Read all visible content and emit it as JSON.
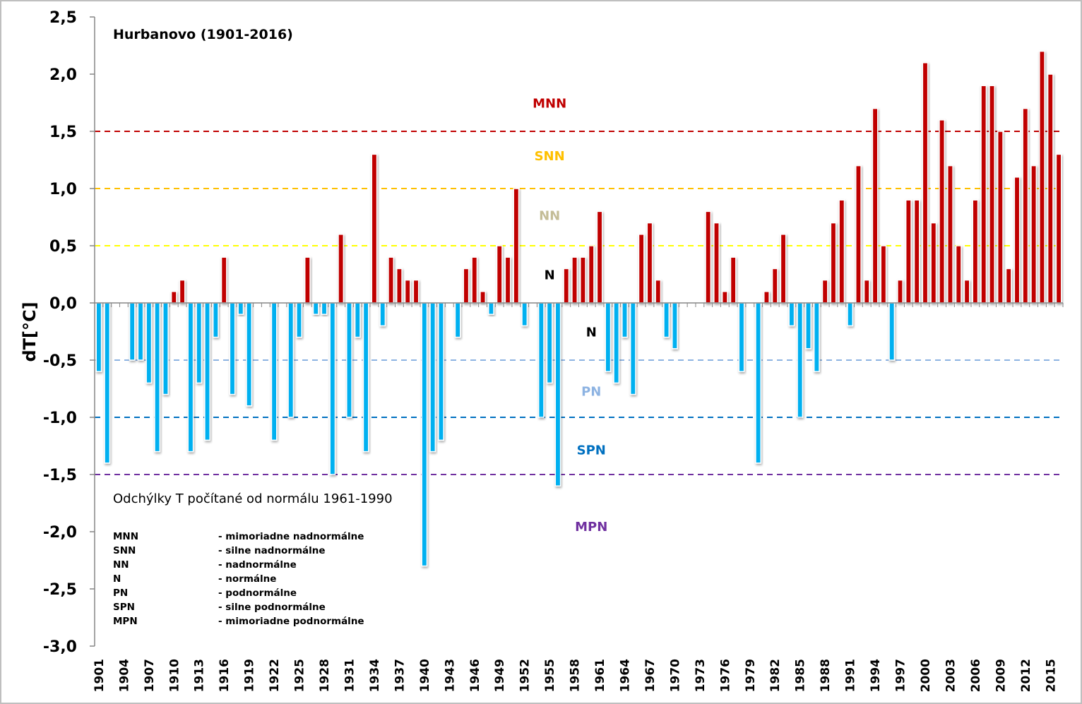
{
  "chart_data": {
    "type": "bar",
    "title": "Hurbanovo (1901-2016)",
    "xlabel": "",
    "ylabel": "dT[°C]",
    "ylim": [
      -3.0,
      2.5
    ],
    "y_ticks": [
      "2,5",
      "2,0",
      "1,5",
      "1,0",
      "0,5",
      "0,0",
      "-0,5",
      "-1,0",
      "-1,5",
      "-2,0",
      "-2,5",
      "-3,0"
    ],
    "y_tick_values": [
      2.5,
      2.0,
      1.5,
      1.0,
      0.5,
      0.0,
      -0.5,
      -1.0,
      -1.5,
      -2.0,
      -2.5,
      -3.0
    ],
    "x_tick_every": 3,
    "grid": false,
    "positive_color": "#c00000",
    "negative_color": "#00b0f0",
    "categories": [
      1901,
      1902,
      1903,
      1904,
      1905,
      1906,
      1907,
      1908,
      1909,
      1910,
      1911,
      1912,
      1913,
      1914,
      1915,
      1916,
      1917,
      1918,
      1919,
      1920,
      1921,
      1922,
      1923,
      1924,
      1925,
      1926,
      1927,
      1928,
      1929,
      1930,
      1931,
      1932,
      1933,
      1934,
      1935,
      1936,
      1937,
      1938,
      1939,
      1940,
      1941,
      1942,
      1943,
      1944,
      1945,
      1946,
      1947,
      1948,
      1949,
      1950,
      1951,
      1952,
      1953,
      1954,
      1955,
      1956,
      1957,
      1958,
      1959,
      1960,
      1961,
      1962,
      1963,
      1964,
      1965,
      1966,
      1967,
      1968,
      1969,
      1970,
      1971,
      1972,
      1973,
      1974,
      1975,
      1976,
      1977,
      1978,
      1979,
      1980,
      1981,
      1982,
      1983,
      1984,
      1985,
      1986,
      1987,
      1988,
      1989,
      1990,
      1991,
      1992,
      1993,
      1994,
      1995,
      1996,
      1997,
      1998,
      1999,
      2000,
      2001,
      2002,
      2003,
      2004,
      2005,
      2006,
      2007,
      2008,
      2009,
      2010,
      2011,
      2012,
      2013,
      2014,
      2015,
      2016
    ],
    "values": [
      -0.6,
      -1.4,
      0,
      0,
      -0.5,
      -0.5,
      -0.7,
      -1.3,
      -0.8,
      0.1,
      0.2,
      -1.3,
      -0.7,
      -1.2,
      -0.3,
      0.4,
      -0.8,
      -0.1,
      -0.9,
      0,
      0,
      -1.2,
      0,
      -1.0,
      -0.3,
      0.4,
      -0.1,
      -0.1,
      -1.5,
      0.6,
      -1.0,
      -0.3,
      -1.3,
      1.3,
      -0.2,
      0.4,
      0.3,
      0.2,
      0.2,
      -2.3,
      -1.3,
      -1.2,
      0,
      -0.3,
      0.3,
      0.4,
      0.1,
      -0.1,
      0.5,
      0.4,
      1.0,
      -0.2,
      0,
      -1.0,
      -0.7,
      -1.6,
      0.3,
      0.4,
      0.4,
      0.5,
      0.8,
      -0.6,
      -0.7,
      -0.3,
      -0.8,
      0.6,
      0.7,
      0.2,
      -0.3,
      -0.4,
      0,
      0,
      0,
      0.8,
      0.7,
      0.1,
      0.4,
      -0.6,
      0,
      -1.4,
      0.1,
      0.3,
      0.6,
      -0.2,
      -1.0,
      -0.4,
      -0.6,
      0.2,
      0.7,
      0.9,
      -0.2,
      1.2,
      0.2,
      1.7,
      0.5,
      -0.5,
      0.2,
      0.9,
      0.9,
      2.1,
      0.7,
      1.6,
      1.2,
      0.5,
      0.2,
      0.9,
      1.9,
      1.9,
      1.5,
      0.3,
      1.1,
      1.7,
      1.2,
      2.2,
      2.0,
      1.3
    ],
    "threshold_lines": [
      {
        "value": 1.5,
        "color": "#c00000"
      },
      {
        "value": 1.0,
        "color": "#ffc000"
      },
      {
        "value": 0.5,
        "color": "#ffff00"
      },
      {
        "value": -0.5,
        "color": "#8db3e2"
      },
      {
        "value": -1.0,
        "color": "#0070c0"
      },
      {
        "value": -1.5,
        "color": "#7030a0"
      }
    ],
    "zone_labels": [
      {
        "text": "MNN",
        "value": 1.75,
        "color": "#c00000",
        "year": 1955
      },
      {
        "text": "SNN",
        "value": 1.29,
        "color": "#ffc000",
        "year": 1955
      },
      {
        "text": "NN",
        "value": 0.77,
        "color": "#c4bd97",
        "year": 1955
      },
      {
        "text": "N",
        "value": 0.25,
        "color": "#000000",
        "year": 1955
      },
      {
        "text": "N",
        "value": -0.25,
        "color": "#000000",
        "year": 1960
      },
      {
        "text": "PN",
        "value": -0.77,
        "color": "#8db3e2",
        "year": 1960
      },
      {
        "text": "SPN",
        "value": -1.28,
        "color": "#0070c0",
        "year": 1960
      },
      {
        "text": "MPN",
        "value": -1.95,
        "color": "#7030a0",
        "year": 1960
      }
    ],
    "annotation": "Odchýlky T počítané od normálu 1961-1990",
    "legend": [
      {
        "code": "MNN",
        "desc": "- mimoriadne nadnormálne"
      },
      {
        "code": "SNN",
        "desc": "- silne nadnormálne"
      },
      {
        "code": "NN",
        "desc": "- nadnormálne"
      },
      {
        "code": "N",
        "desc": "- normálne"
      },
      {
        "code": "PN",
        "desc": "- podnormálne"
      },
      {
        "code": "SPN",
        "desc": "- silne podnormálne"
      },
      {
        "code": "MPN",
        "desc": "- mimoriadne podnormálne"
      }
    ]
  }
}
